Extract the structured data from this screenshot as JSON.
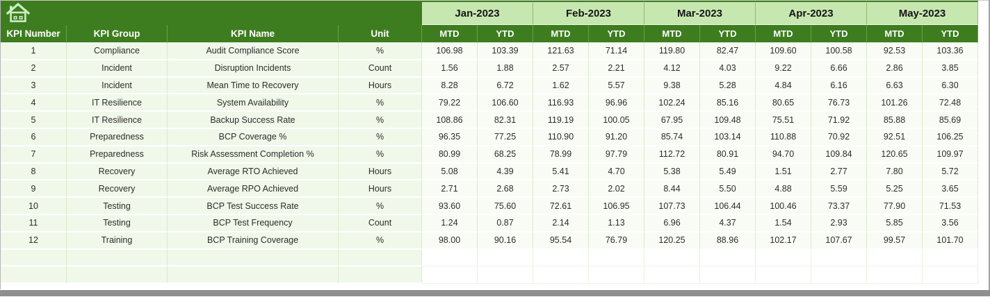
{
  "sheet": {
    "months": [
      "Jan-2023",
      "Feb-2023",
      "Mar-2023",
      "Apr-2023",
      "May-2023"
    ],
    "sub_headers": [
      "MTD",
      "YTD"
    ],
    "left_headers": [
      "KPI Number",
      "KPI Group",
      "KPI Name",
      "Unit"
    ],
    "rows": [
      {
        "kpi_number": "1",
        "kpi_group": "Compliance",
        "kpi_name": "Audit Compliance Score",
        "unit": "%",
        "values": [
          "106.98",
          "103.39",
          "121.63",
          "71.14",
          "119.80",
          "82.47",
          "109.60",
          "100.58",
          "92.53",
          "103.36"
        ]
      },
      {
        "kpi_number": "2",
        "kpi_group": "Incident",
        "kpi_name": "Disruption Incidents",
        "unit": "Count",
        "values": [
          "1.56",
          "1.88",
          "2.57",
          "2.21",
          "4.12",
          "4.03",
          "9.22",
          "6.66",
          "2.86",
          "3.85"
        ]
      },
      {
        "kpi_number": "3",
        "kpi_group": "Incident",
        "kpi_name": "Mean Time to Recovery",
        "unit": "Hours",
        "values": [
          "8.28",
          "6.72",
          "1.62",
          "5.57",
          "9.38",
          "5.28",
          "4.84",
          "6.16",
          "6.63",
          "6.30"
        ]
      },
      {
        "kpi_number": "4",
        "kpi_group": "IT Resilience",
        "kpi_name": "System Availability",
        "unit": "%",
        "values": [
          "79.22",
          "106.60",
          "116.93",
          "96.96",
          "102.24",
          "85.16",
          "80.65",
          "76.73",
          "101.26",
          "72.48"
        ]
      },
      {
        "kpi_number": "5",
        "kpi_group": "IT Resilience",
        "kpi_name": "Backup Success Rate",
        "unit": "%",
        "values": [
          "108.86",
          "82.31",
          "119.19",
          "100.05",
          "67.95",
          "109.48",
          "75.51",
          "71.92",
          "85.88",
          "85.69"
        ]
      },
      {
        "kpi_number": "6",
        "kpi_group": "Preparedness",
        "kpi_name": "BCP Coverage %",
        "unit": "%",
        "values": [
          "96.35",
          "77.25",
          "110.90",
          "91.20",
          "85.74",
          "103.14",
          "110.88",
          "70.92",
          "92.51",
          "106.25"
        ]
      },
      {
        "kpi_number": "7",
        "kpi_group": "Preparedness",
        "kpi_name": "Risk Assessment Completion %",
        "unit": "%",
        "values": [
          "80.99",
          "68.25",
          "78.99",
          "97.79",
          "112.72",
          "80.91",
          "94.70",
          "109.84",
          "120.65",
          "109.97"
        ]
      },
      {
        "kpi_number": "8",
        "kpi_group": "Recovery",
        "kpi_name": "Average RTO Achieved",
        "unit": "Hours",
        "values": [
          "5.08",
          "4.39",
          "5.41",
          "4.70",
          "5.38",
          "5.49",
          "1.51",
          "2.77",
          "7.80",
          "5.72"
        ]
      },
      {
        "kpi_number": "9",
        "kpi_group": "Recovery",
        "kpi_name": "Average RPO Achieved",
        "unit": "Hours",
        "values": [
          "2.71",
          "2.68",
          "2.73",
          "2.02",
          "8.44",
          "5.50",
          "4.88",
          "5.59",
          "5.25",
          "3.65"
        ]
      },
      {
        "kpi_number": "10",
        "kpi_group": "Testing",
        "kpi_name": "BCP Test Success Rate",
        "unit": "%",
        "values": [
          "93.60",
          "75.60",
          "72.61",
          "106.95",
          "107.73",
          "106.44",
          "100.46",
          "73.37",
          "77.90",
          "71.53"
        ]
      },
      {
        "kpi_number": "11",
        "kpi_group": "Testing",
        "kpi_name": "BCP Test Frequency",
        "unit": "Count",
        "values": [
          "1.24",
          "0.87",
          "2.14",
          "1.13",
          "6.96",
          "4.37",
          "1.54",
          "2.93",
          "5.85",
          "3.56"
        ]
      },
      {
        "kpi_number": "12",
        "kpi_group": "Training",
        "kpi_name": "BCP Training Coverage",
        "unit": "%",
        "values": [
          "98.00",
          "90.16",
          "95.54",
          "76.79",
          "120.25",
          "88.96",
          "102.17",
          "107.67",
          "99.57",
          "101.70"
        ]
      }
    ],
    "empty_row_count": 2
  },
  "colors": {
    "header_dark_green": "#3e7d1f",
    "month_light_green": "#c7e7b0",
    "row_tint_green": "#f0f8ea",
    "value_tint_green": "#f9fcf4",
    "icon_pale_green": "#cdeec6",
    "scrollbar_gray": "#8f8f8f"
  }
}
